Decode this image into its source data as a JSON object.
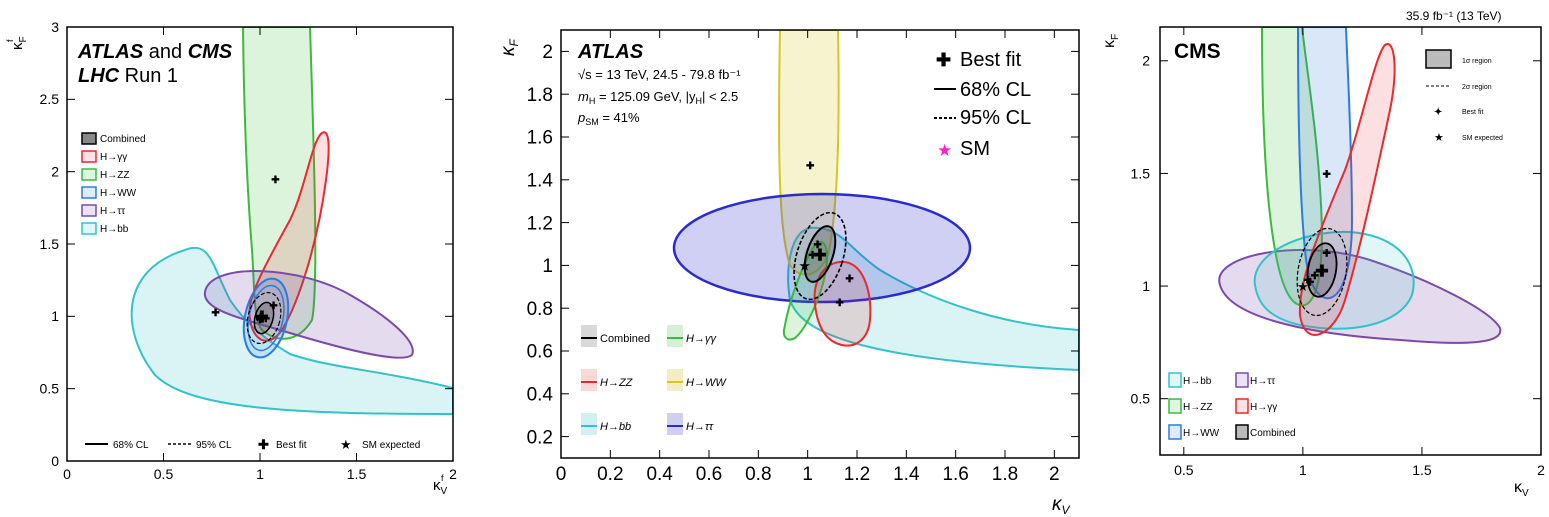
{
  "charts": [
    {
      "id": "p1",
      "header": {
        "l1a": "ATLAS",
        "l1b": "and",
        "l1c": "CMS",
        "l2a": "LHC",
        "l2b": "Run 1"
      },
      "xlabel": "κ",
      "xlabel_sub": "V",
      "xlabel_sup": "f",
      "ylabel": "κ",
      "ylabel_sub": "F",
      "ylabel_sup": "f",
      "xlim": [
        0,
        2
      ],
      "ylim": [
        0,
        3
      ],
      "xticks": [
        "0",
        "0.5",
        "1",
        "1.5",
        "2"
      ],
      "xtick_vals": [
        0,
        0.5,
        1,
        1.5,
        2
      ],
      "yticks": [
        "0",
        "0.5",
        "1",
        "1.5",
        "2",
        "2.5",
        "3"
      ],
      "ytick_vals": [
        0,
        0.5,
        1,
        1.5,
        2,
        2.5,
        3
      ],
      "legend": [
        "Combined",
        "H→γγ",
        "H→ZZ",
        "H→WW",
        "H→ττ",
        "H→bb"
      ],
      "bottom_legend": {
        "l68": "68% CL",
        "l95": "95% CL",
        "best": "Best fit",
        "sm": "SM expected"
      }
    },
    {
      "id": "p2",
      "header": {
        "title": "ATLAS",
        "line1": "√s = 13 TeV, 24.5 - 79.8 fb⁻¹",
        "line2a": "m",
        "line2b": "H",
        "line2c": " = 125.09 GeV, |y",
        "line2d": "H",
        "line2e": "| < 2.5",
        "line3a": "p",
        "line3b": "SM",
        "line3c": " = 41%"
      },
      "xlabel": "κ",
      "xlabel_sub": "V",
      "ylabel": "κ",
      "ylabel_sub": "F",
      "xlim": [
        0,
        2.1
      ],
      "ylim": [
        0.1,
        2.1
      ],
      "xticks": [
        "0",
        "0.2",
        "0.4",
        "0.6",
        "0.8",
        "1",
        "1.2",
        "1.4",
        "1.6",
        "1.8",
        "2"
      ],
      "xtick_vals": [
        0,
        0.2,
        0.4,
        0.6,
        0.8,
        1,
        1.2,
        1.4,
        1.6,
        1.8,
        2
      ],
      "yticks": [
        "0.2",
        "0.4",
        "0.6",
        "0.8",
        "1",
        "1.2",
        "1.4",
        "1.6",
        "1.8",
        "2"
      ],
      "ytick_vals": [
        0.2,
        0.4,
        0.6,
        0.8,
        1,
        1.2,
        1.4,
        1.6,
        1.8,
        2
      ],
      "legend_right": {
        "best": "Best fit",
        "l68": "68% CL",
        "l95": "95% CL",
        "sm": "SM"
      },
      "legend": [
        "Combined",
        "H→γγ",
        "H→ZZ",
        "H→WW",
        "H→bb",
        "H→ττ"
      ]
    },
    {
      "id": "p3",
      "lumi": "35.9 fb⁻¹ (13 TeV)",
      "header": {
        "title": "CMS"
      },
      "xlabel": "κ",
      "xlabel_sub": "V",
      "ylabel": "κ",
      "ylabel_sub": "F",
      "xlim": [
        0.4,
        2
      ],
      "ylim": [
        0.25,
        2.15
      ],
      "xticks": [
        "0.5",
        "1",
        "1.5",
        "2"
      ],
      "xtick_vals": [
        0.5,
        1,
        1.5,
        2
      ],
      "yticks": [
        "0.5",
        "1",
        "1.5",
        "2"
      ],
      "ytick_vals": [
        0.5,
        1,
        1.5,
        2
      ],
      "legend_right": {
        "r1": "1σ region",
        "r2": "2σ region",
        "best": "Best fit",
        "sm": "SM expected"
      },
      "legend": [
        "H→bb",
        "H→ττ",
        "H→ZZ",
        "H→γγ",
        "H→WW",
        "Combined"
      ]
    }
  ],
  "colors": {
    "combined": "#555555",
    "gg": "#e8292d",
    "zz": "#3cba3c",
    "ww": "#2b7be0",
    "tt": "#7b4aa8",
    "bb": "#33c2c9",
    "yellow": "#d6c71f",
    "blue": "#2a2ad0",
    "sm": "#ff22cc"
  },
  "chart_data": [
    {
      "type": "scatter",
      "title": "ATLAS and CMS LHC Run 1",
      "xlabel": "κV f",
      "ylabel": "κF f",
      "xlim": [
        0,
        2
      ],
      "ylim": [
        0,
        3
      ],
      "series": [
        {
          "name": "Combined",
          "best_fit": [
            1.01,
            1.0
          ]
        },
        {
          "name": "H→γγ",
          "best_fit": [
            1.07,
            1.08
          ]
        },
        {
          "name": "H→ZZ",
          "best_fit": [
            1.08,
            1.95
          ]
        },
        {
          "name": "H→WW",
          "best_fit": [
            1.03,
            0.99
          ]
        },
        {
          "name": "H→ττ",
          "best_fit": [
            1.0,
            0.98
          ]
        },
        {
          "name": "H→bb",
          "best_fit": [
            0.77,
            1.03
          ]
        }
      ],
      "sm_expected": [
        1,
        1
      ]
    },
    {
      "type": "scatter",
      "title": "ATLAS",
      "xlabel": "κV",
      "ylabel": "κF",
      "xlim": [
        0,
        2.1
      ],
      "ylim": [
        0.1,
        2.1
      ],
      "series": [
        {
          "name": "Combined",
          "best_fit": [
            1.05,
            1.05
          ]
        },
        {
          "name": "H→γγ",
          "best_fit": [
            1.02,
            1.05
          ]
        },
        {
          "name": "H→ZZ",
          "best_fit": [
            1.13,
            0.83
          ]
        },
        {
          "name": "H→WW",
          "best_fit": [
            1.01,
            1.47
          ]
        },
        {
          "name": "H→bb",
          "best_fit": [
            1.17,
            0.94
          ]
        },
        {
          "name": "H→ττ",
          "best_fit": [
            1.04,
            1.1
          ]
        }
      ],
      "sm": [
        1,
        1
      ]
    },
    {
      "type": "scatter",
      "title": "CMS",
      "xlabel": "κV",
      "ylabel": "κF",
      "xlim": [
        0.4,
        2
      ],
      "ylim": [
        0.25,
        2.15
      ],
      "series": [
        {
          "name": "Combined",
          "best_fit": [
            1.08,
            1.07
          ]
        },
        {
          "name": "H→bb",
          "best_fit": [
            1.05,
            1.05
          ]
        },
        {
          "name": "H→ττ",
          "best_fit": [
            1.03,
            1.02
          ]
        },
        {
          "name": "H→ZZ",
          "best_fit": [
            1.02,
            1.03
          ]
        },
        {
          "name": "H→γγ",
          "best_fit": [
            1.1,
            1.15
          ]
        },
        {
          "name": "H→WW",
          "best_fit": [
            1.1,
            1.5
          ]
        }
      ],
      "sm_expected": [
        1,
        1
      ]
    }
  ]
}
